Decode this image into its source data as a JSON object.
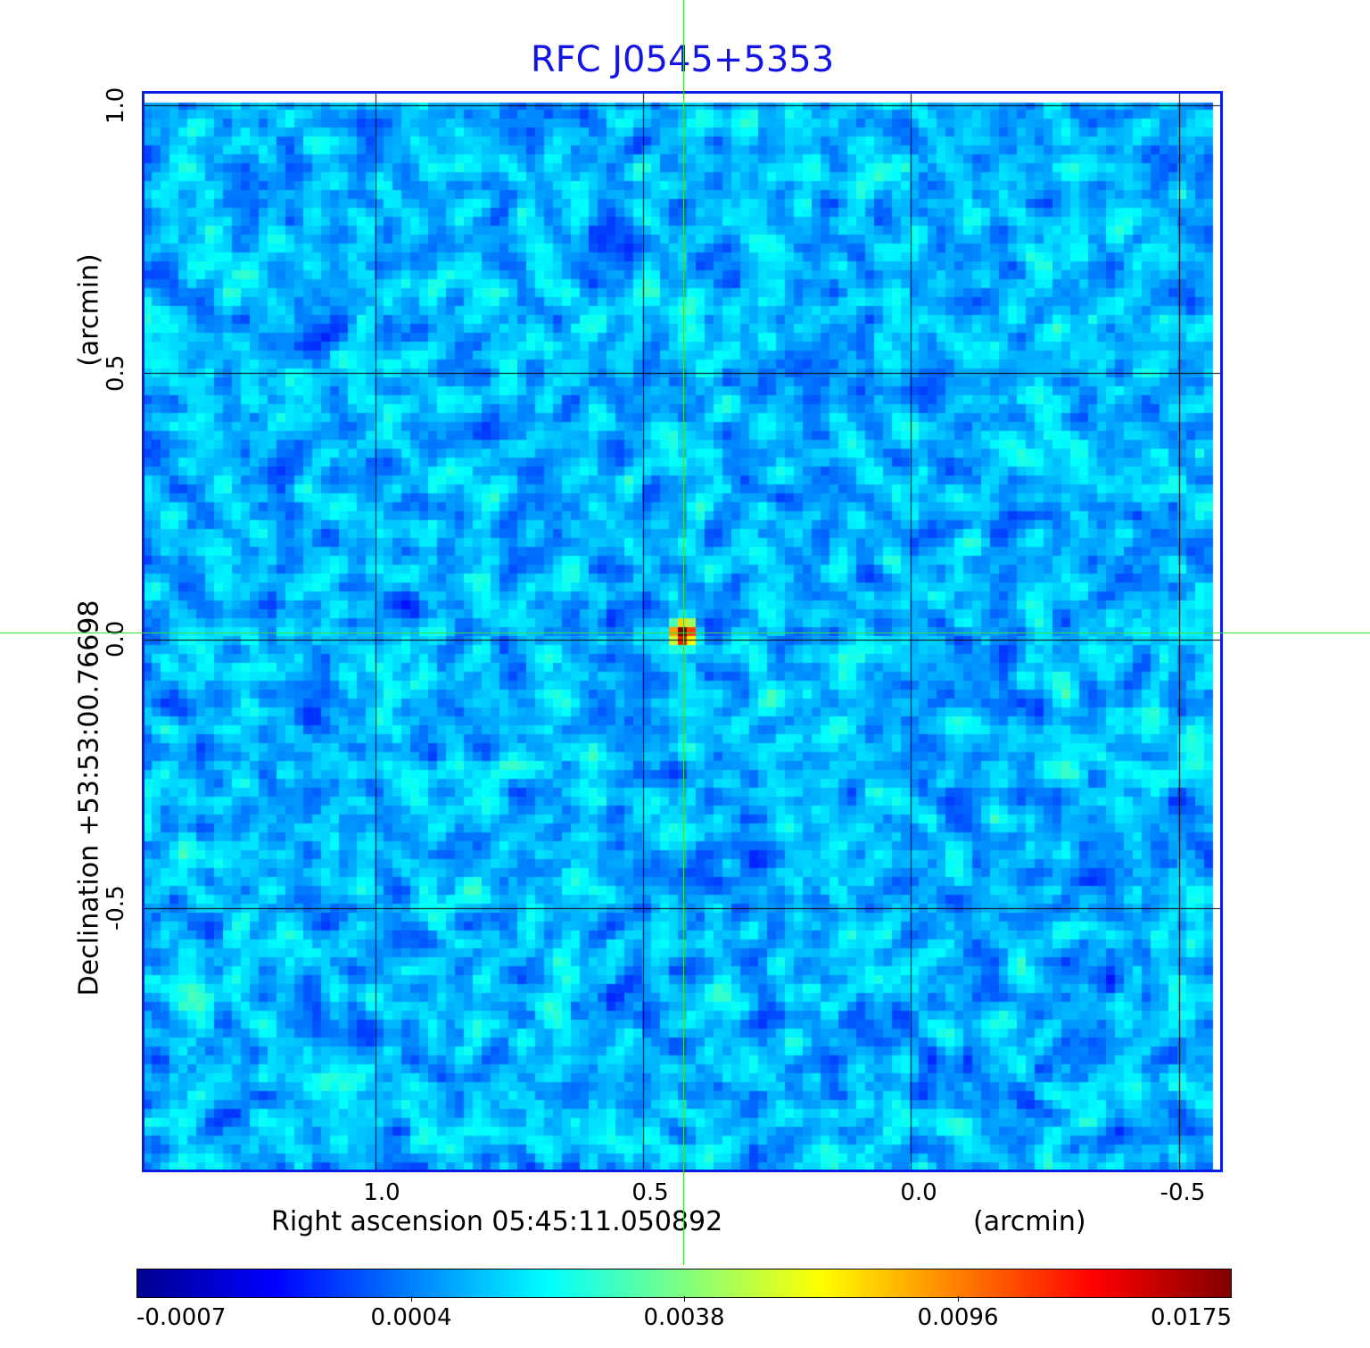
{
  "chart_data": {
    "type": "heatmap",
    "title": "RFC J0545+5353",
    "xlabel": "Right ascension  05:45:11.050892",
    "xunit": "(arcmin)",
    "ylabel": "Declination  +53:53:00.76698",
    "yunit": "(arcmin)",
    "x_ticks": [
      "1.0",
      "0.5",
      "0.0",
      "-0.5"
    ],
    "y_ticks": [
      "1.0",
      "0.5",
      "0.0",
      "-0.5"
    ],
    "xlim": [
      1.43,
      -0.58
    ],
    "ylim": [
      -1.02,
      1.02
    ],
    "grid": true,
    "colormap": "jet",
    "colorbar_ticks": [
      "-0.0007",
      "0.0004",
      "0.0038",
      "0.0096",
      "0.0175"
    ],
    "colorbar_range": [
      -0.0007,
      0.0175
    ],
    "peak_source": {
      "x": 0.42,
      "y": 0.0,
      "value": 0.0175
    },
    "crosshair": {
      "x": 0.42,
      "y": 0.0
    }
  }
}
